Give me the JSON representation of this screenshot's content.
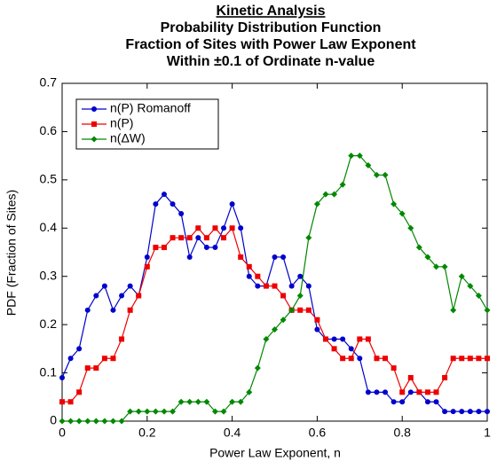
{
  "chart_data": {
    "type": "line",
    "title": "Kinetic Analysis",
    "subtitle": [
      "Probability Distribution Function",
      "Fraction of Sites with Power Law Exponent",
      "Within ±0.1 of Ordinate n-value"
    ],
    "x_label": "Power Law Exponent, n",
    "y_label": "PDF (Fraction of Sites)",
    "x": [
      0,
      0.02,
      0.04,
      0.06,
      0.08,
      0.1,
      0.12,
      0.14,
      0.16,
      0.18,
      0.2,
      0.22,
      0.24,
      0.26,
      0.28,
      0.3,
      0.32,
      0.34,
      0.36,
      0.38,
      0.4,
      0.42,
      0.44,
      0.46,
      0.48,
      0.5,
      0.52,
      0.54,
      0.56,
      0.58,
      0.6,
      0.62,
      0.64,
      0.66,
      0.68,
      0.7,
      0.72,
      0.74,
      0.76,
      0.78,
      0.8,
      0.82,
      0.84,
      0.86,
      0.88,
      0.9,
      0.92,
      0.94,
      0.96,
      0.98,
      1
    ],
    "series": [
      {
        "name": "n(P) Romanoff",
        "color": "#0000cc",
        "marker": "circle",
        "values": [
          0.09,
          0.13,
          0.15,
          0.23,
          0.26,
          0.28,
          0.23,
          0.26,
          0.28,
          0.26,
          0.34,
          0.45,
          0.47,
          0.45,
          0.43,
          0.34,
          0.38,
          0.36,
          0.36,
          0.4,
          0.45,
          0.4,
          0.3,
          0.28,
          0.28,
          0.34,
          0.34,
          0.28,
          0.3,
          0.28,
          0.19,
          0.17,
          0.17,
          0.17,
          0.15,
          0.13,
          0.06,
          0.06,
          0.06,
          0.04,
          0.04,
          0.06,
          0.06,
          0.04,
          0.04,
          0.02,
          0.02,
          0.02,
          0.02,
          0.02,
          0.02
        ]
      },
      {
        "name": "n(P)",
        "color": "#ee0000",
        "marker": "square",
        "values": [
          0.04,
          0.04,
          0.06,
          0.11,
          0.11,
          0.13,
          0.13,
          0.17,
          0.23,
          0.26,
          0.32,
          0.36,
          0.36,
          0.38,
          0.38,
          0.38,
          0.4,
          0.38,
          0.4,
          0.38,
          0.4,
          0.34,
          0.32,
          0.3,
          0.28,
          0.28,
          0.26,
          0.23,
          0.23,
          0.23,
          0.21,
          0.17,
          0.15,
          0.13,
          0.13,
          0.17,
          0.17,
          0.13,
          0.13,
          0.11,
          0.06,
          0.09,
          0.06,
          0.06,
          0.06,
          0.09,
          0.13,
          0.13,
          0.13,
          0.13,
          0.13
        ]
      },
      {
        "name": "n(ΔW)",
        "color": "#008800",
        "marker": "diamond",
        "values": [
          0,
          0,
          0,
          0,
          0,
          0,
          0,
          0,
          0.02,
          0.02,
          0.02,
          0.02,
          0.02,
          0.02,
          0.04,
          0.04,
          0.04,
          0.04,
          0.02,
          0.02,
          0.04,
          0.04,
          0.06,
          0.11,
          0.17,
          0.19,
          0.21,
          0.23,
          0.26,
          0.38,
          0.45,
          0.47,
          0.47,
          0.49,
          0.55,
          0.55,
          0.53,
          0.51,
          0.51,
          0.45,
          0.43,
          0.4,
          0.36,
          0.34,
          0.32,
          0.32,
          0.23,
          0.3,
          0.28,
          0.26,
          0.23
        ]
      }
    ],
    "xlim": [
      0,
      1
    ],
    "xticks": [
      0,
      0.2,
      0.4,
      0.6,
      0.8,
      1
    ],
    "ylim": [
      0,
      0.7
    ],
    "yticks": [
      0,
      0.1,
      0.2,
      0.3,
      0.4,
      0.5,
      0.6,
      0.7
    ],
    "legend": "upper left",
    "grid": false
  }
}
